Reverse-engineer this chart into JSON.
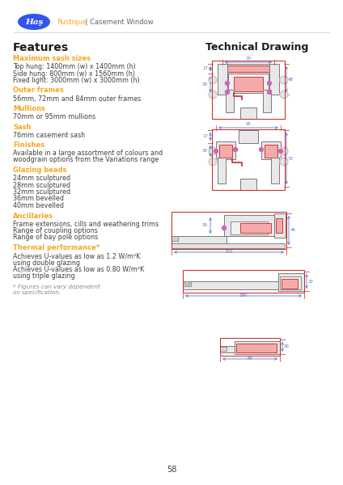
{
  "title": "Halo Rustique Casement Window",
  "logo_text": "Haş",
  "brand_name": "Rustique",
  "product_type": "Casement Window",
  "features_title": "Features",
  "tech_title": "Technical Drawing",
  "sections": [
    {
      "heading": "Maximum sash sizes",
      "body": "Top hung: 1400mm (w) x 1400mm (h)\nSide hung: 800mm (w) x 1560mm (h)\nFixed light: 3000mm (w) x 3000mm (h)"
    },
    {
      "heading": "Outer frames",
      "body": "56mm, 72mm and 84mm outer frames"
    },
    {
      "heading": "Mullions",
      "body": "70mm or 95mm mullions"
    },
    {
      "heading": "Sash",
      "body": "76mm casement sash"
    },
    {
      "heading": "Finishes",
      "body": "Available in a large assortment of colours and\nwoodgrain options from the Variations range"
    },
    {
      "heading": "Glazing beads",
      "body": "24mm sculptured\n28mm sculptured\n32mm sculptured\n36mm bevelled\n40mm bevelled"
    },
    {
      "heading": "Ancillaries",
      "body": "Frame extensions, cills and weathering trims\nRange of coupling options\nRange of bay pole options"
    },
    {
      "heading": "Thermal performance*",
      "body": "Achieves U-values as low as 1.2 W/m²K\nusing double glazing\nAchieves U-values as low as 0.80 W/m²K\nusing triple glazing"
    }
  ],
  "footnote": "* Figures can vary dependent\non specification.",
  "page_number": "58",
  "bg_color": "#ffffff",
  "heading_color": "#f5a623",
  "body_color": "#404040",
  "title_color": "#1a1a1a",
  "logo_bg": "#3355ee",
  "logo_text_color": "#ffffff",
  "brand_color": "#f5a623",
  "separator_color": "#cccccc",
  "line_col": "#7a7a7a",
  "red_col": "#cc2222",
  "pink_fill": "#f5aaaa",
  "purple_fill": "#cc66bb",
  "dim_col": "#5577cc"
}
